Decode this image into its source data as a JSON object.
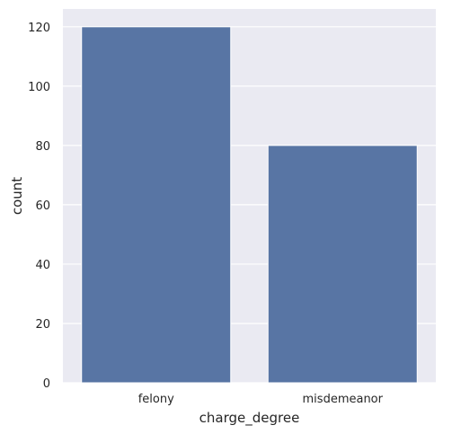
{
  "chart_data": {
    "type": "bar",
    "title": "",
    "xlabel": "charge_degree",
    "ylabel": "count",
    "categories": [
      "felony",
      "misdemeanor"
    ],
    "values": [
      120,
      80
    ],
    "ylim": [
      0,
      126
    ],
    "yticks": [
      0,
      20,
      40,
      60,
      80,
      100,
      120
    ],
    "grid": true,
    "legend": "none"
  },
  "colors": {
    "plot_background": "#eaeaf2",
    "grid": "#ffffff",
    "bar": "#5875a4",
    "text": "#262626"
  }
}
